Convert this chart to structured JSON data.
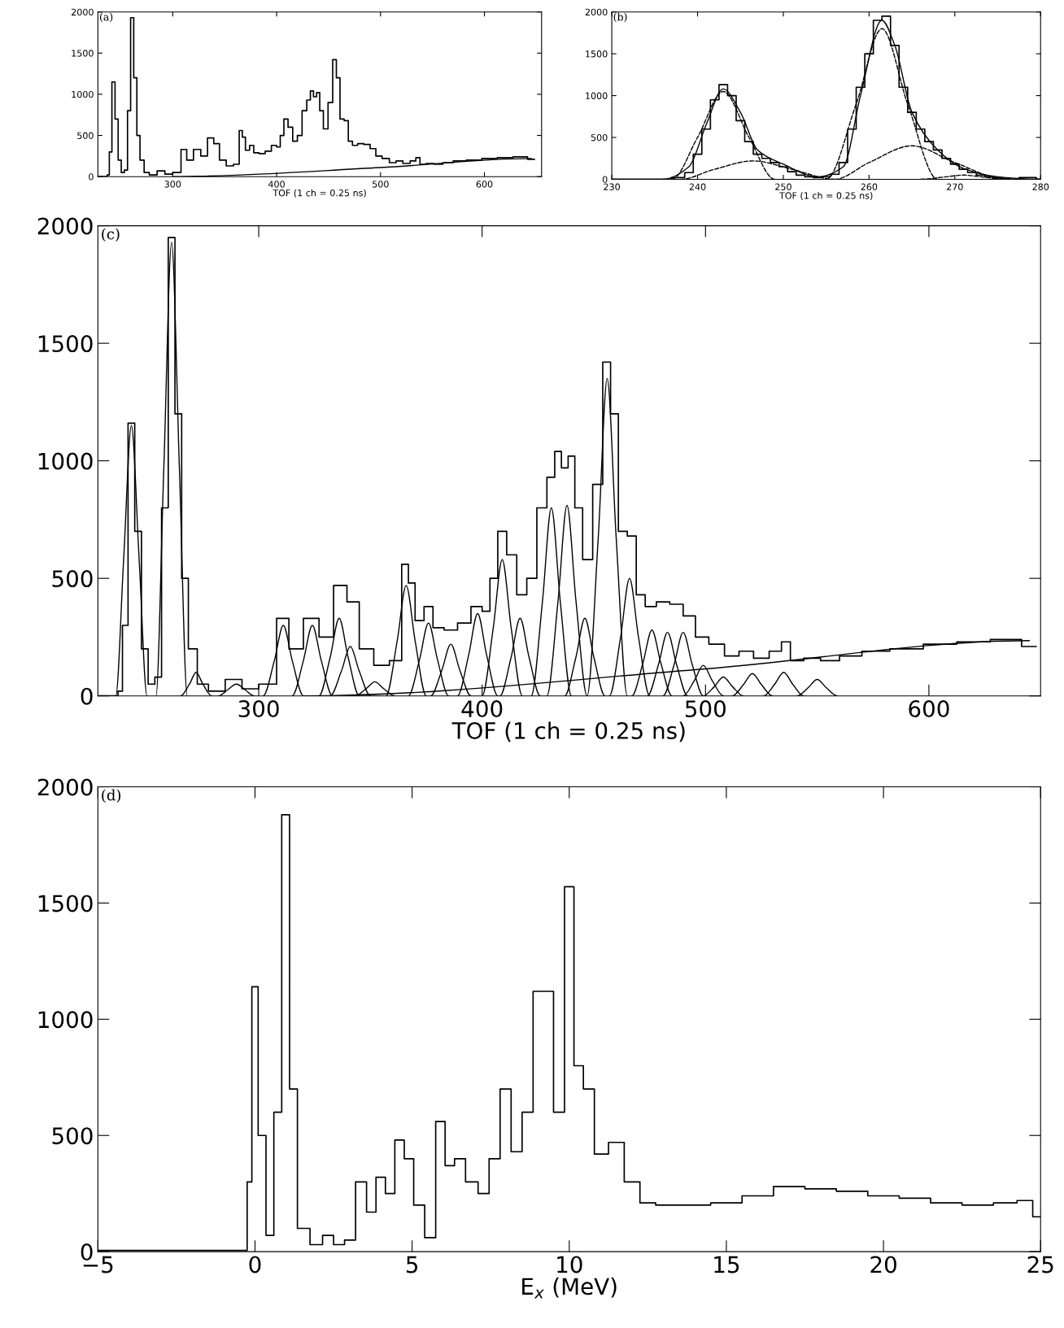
{
  "chart_data": [
    {
      "type": "step",
      "annotations": [
        "(a)"
      ],
      "xlabel": "TOF (1 ch = 0.25 ns)",
      "xlim": [
        228,
        655
      ],
      "xticks": [
        300,
        400,
        500,
        600
      ],
      "ylim": [
        0,
        2000
      ],
      "yticks": [
        0,
        500,
        1000,
        1500,
        2000
      ],
      "series": [
        {
          "color": "#000000",
          "x": [
            228,
            236,
            238,
            240,
            243,
            246,
            249,
            252,
            255,
            258,
            261,
            264,
            267,
            270,
            275,
            280,
            290,
            295,
            305,
            311,
            316,
            324,
            330,
            337,
            342,
            348,
            355,
            362,
            366,
            368,
            372,
            376,
            380,
            386,
            392,
            398,
            402,
            405,
            409,
            413,
            418,
            422,
            427,
            431,
            434,
            437,
            440,
            443,
            447,
            452,
            456,
            459,
            463,
            467,
            471,
            475,
            481,
            487,
            493,
            498,
            505,
            512,
            518,
            525,
            532,
            536,
            540,
            548,
            555,
            565,
            575,
            590,
            605,
            620,
            635,
            648
          ],
          "values": [
            0,
            0,
            20,
            300,
            1150,
            700,
            200,
            50,
            80,
            800,
            1930,
            1200,
            500,
            200,
            50,
            20,
            70,
            30,
            50,
            330,
            200,
            330,
            250,
            470,
            400,
            200,
            130,
            150,
            560,
            480,
            320,
            380,
            290,
            280,
            310,
            380,
            360,
            500,
            700,
            600,
            430,
            500,
            800,
            930,
            1040,
            970,
            1020,
            800,
            580,
            900,
            1420,
            1200,
            700,
            680,
            430,
            380,
            400,
            390,
            340,
            250,
            220,
            170,
            190,
            160,
            190,
            230,
            150,
            160,
            150,
            170,
            190,
            200,
            220,
            230,
            240,
            210
          ]
        },
        {
          "type": "line",
          "color": "#000000",
          "x": [
            300,
            500,
            645
          ],
          "values": [
            0,
            110,
            220
          ]
        }
      ]
    },
    {
      "type": "step",
      "annotations": [
        "(b)"
      ],
      "xlabel": "TOF (1 ch = 0.25 ns)",
      "xlim": [
        230,
        280
      ],
      "xticks": [
        230,
        240,
        250,
        260,
        270,
        280
      ],
      "ylim": [
        0,
        2000
      ],
      "yticks": [
        0,
        500,
        1000,
        1500,
        2000
      ],
      "series": [
        {
          "color": "#000000",
          "x": [
            230,
            232,
            234,
            236,
            238,
            239,
            240,
            241,
            242,
            243,
            244,
            245,
            246,
            247,
            248,
            249,
            250,
            251,
            252,
            253,
            254,
            255,
            256,
            257,
            258,
            259,
            260,
            261,
            262,
            263,
            264,
            265,
            266,
            267,
            268,
            269,
            270,
            271,
            272,
            273,
            274,
            275,
            276,
            277,
            278,
            279,
            280
          ],
          "values": [
            0,
            0,
            0,
            0,
            20,
            80,
            300,
            600,
            950,
            1130,
            1000,
            700,
            450,
            300,
            250,
            200,
            150,
            90,
            50,
            30,
            20,
            30,
            60,
            200,
            600,
            1100,
            1500,
            1900,
            1950,
            1600,
            1100,
            800,
            600,
            450,
            350,
            250,
            180,
            120,
            80,
            50,
            30,
            20,
            10,
            0,
            20,
            20,
            0
          ]
        },
        {
          "type": "line",
          "color": "#000000",
          "x": [
            236,
            239,
            241,
            243,
            245,
            247,
            250,
            254,
            257,
            259,
            261.5,
            263,
            265,
            268,
            271,
            275,
            280
          ],
          "values": [
            0,
            150,
            650,
            1080,
            800,
            350,
            180,
            30,
            150,
            1000,
            1900,
            1600,
            800,
            350,
            130,
            30,
            0
          ]
        },
        {
          "type": "line",
          "color": "#000000",
          "line_style": "dashed",
          "x": [
            237,
            240,
            243,
            246,
            249
          ],
          "values": [
            0,
            500,
            1050,
            500,
            0
          ]
        },
        {
          "type": "line",
          "color": "#000000",
          "line_style": "dashed",
          "x": [
            238,
            242,
            246.5,
            251,
            256
          ],
          "values": [
            0,
            120,
            220,
            120,
            0
          ]
        },
        {
          "type": "line",
          "color": "#000000",
          "line_style": "dashed",
          "x": [
            255,
            258.5,
            261.5,
            264.5,
            268
          ],
          "values": [
            0,
            900,
            1800,
            900,
            0
          ]
        },
        {
          "type": "line",
          "color": "#000000",
          "line_style": "dashed",
          "x": [
            256,
            260,
            265,
            270,
            276
          ],
          "values": [
            0,
            200,
            400,
            200,
            0
          ]
        },
        {
          "type": "line",
          "color": "#000000",
          "line_style": "dashed",
          "x": [
            266,
            269,
            271,
            273,
            276
          ],
          "values": [
            0,
            30,
            50,
            30,
            0
          ]
        }
      ]
    },
    {
      "type": "step",
      "annotations": [
        "(c)"
      ],
      "xlabel": "TOF (1 ch = 0.25 ns)",
      "xlim": [
        228,
        650
      ],
      "xticks": [
        300,
        400,
        500,
        600
      ],
      "ylim": [
        0,
        2000
      ],
      "yticks": [
        0,
        500,
        1000,
        1500,
        2000
      ],
      "series": [
        {
          "color": "#000000",
          "x": [
            228,
            236,
            238,
            240,
            243,
            246,
            249,
            252,
            255,
            258,
            261,
            264,
            267,
            270,
            275,
            280,
            290,
            295,
            305,
            311,
            316,
            324,
            330,
            337,
            342,
            348,
            355,
            362,
            366,
            368,
            372,
            376,
            380,
            386,
            392,
            398,
            402,
            405,
            409,
            413,
            418,
            422,
            427,
            431,
            434,
            437,
            440,
            443,
            447,
            452,
            456,
            459,
            463,
            467,
            471,
            475,
            481,
            487,
            493,
            498,
            505,
            512,
            518,
            525,
            532,
            536,
            540,
            548,
            555,
            565,
            575,
            590,
            605,
            620,
            635,
            648
          ],
          "values": [
            0,
            0,
            20,
            300,
            1160,
            700,
            200,
            50,
            80,
            800,
            1950,
            1200,
            500,
            200,
            50,
            20,
            70,
            30,
            50,
            330,
            200,
            330,
            250,
            470,
            400,
            200,
            130,
            150,
            560,
            480,
            320,
            380,
            290,
            280,
            310,
            380,
            360,
            500,
            700,
            600,
            430,
            500,
            800,
            930,
            1040,
            970,
            1020,
            800,
            580,
            900,
            1420,
            1200,
            700,
            680,
            430,
            380,
            400,
            390,
            340,
            250,
            220,
            170,
            190,
            160,
            190,
            230,
            150,
            160,
            150,
            170,
            190,
            200,
            220,
            230,
            240,
            210
          ]
        },
        {
          "type": "line",
          "color": "#000000",
          "x": [
            320,
            500,
            645
          ],
          "values": [
            0,
            115,
            235
          ]
        },
        {
          "type": "line",
          "color": "#000000",
          "x": [
            236,
            239.5,
            243,
            246.5,
            250
          ],
          "values": [
            0,
            575,
            1150,
            575,
            0
          ]
        },
        {
          "type": "line",
          "color": "#000000",
          "x": [
            254,
            257.5,
            261,
            264.5,
            268
          ],
          "values": [
            0,
            965,
            1930,
            965,
            0
          ]
        },
        {
          "type": "line",
          "color": "#000000",
          "x": [
            265,
            269,
            272,
            275,
            279
          ],
          "values": [
            0,
            50,
            100,
            50,
            0
          ]
        },
        {
          "type": "line",
          "color": "#000000",
          "x": [
            282,
            286,
            290,
            294,
            298
          ],
          "values": [
            0,
            25,
            50,
            25,
            0
          ]
        },
        {
          "type": "line",
          "color": "#000000",
          "x": [
            302,
            307,
            311,
            315,
            320
          ],
          "values": [
            0,
            150,
            300,
            150,
            0
          ]
        },
        {
          "type": "line",
          "color": "#000000",
          "x": [
            315,
            320,
            324,
            328,
            333
          ],
          "values": [
            0,
            150,
            300,
            150,
            0
          ]
        },
        {
          "type": "line",
          "color": "#000000",
          "x": [
            327,
            332,
            336,
            340,
            345
          ],
          "values": [
            0,
            165,
            330,
            165,
            0
          ]
        },
        {
          "type": "line",
          "color": "#000000",
          "x": [
            332,
            337,
            341,
            345,
            350
          ],
          "values": [
            0,
            105,
            210,
            105,
            0
          ]
        },
        {
          "type": "line",
          "color": "#000000",
          "x": [
            343,
            348,
            352,
            356,
            361
          ],
          "values": [
            0,
            30,
            60,
            30,
            0
          ]
        },
        {
          "type": "line",
          "color": "#000000",
          "x": [
            357,
            362,
            366,
            370,
            375
          ],
          "values": [
            0,
            235,
            470,
            235,
            0
          ]
        },
        {
          "type": "line",
          "color": "#000000",
          "x": [
            367,
            372,
            376,
            380,
            385
          ],
          "values": [
            0,
            155,
            310,
            155,
            0
          ]
        },
        {
          "type": "line",
          "color": "#000000",
          "x": [
            377,
            382,
            386,
            390,
            395
          ],
          "values": [
            0,
            110,
            220,
            110,
            0
          ]
        },
        {
          "type": "line",
          "color": "#000000",
          "x": [
            389,
            394,
            398,
            402,
            407
          ],
          "values": [
            0,
            175,
            350,
            175,
            0
          ]
        },
        {
          "type": "line",
          "color": "#000000",
          "x": [
            400,
            405,
            409,
            413,
            418
          ],
          "values": [
            0,
            290,
            580,
            290,
            0
          ]
        },
        {
          "type": "line",
          "color": "#000000",
          "x": [
            408,
            413,
            417,
            421,
            426
          ],
          "values": [
            0,
            165,
            330,
            165,
            0
          ]
        },
        {
          "type": "line",
          "color": "#000000",
          "x": [
            422,
            427,
            431,
            435,
            440
          ],
          "values": [
            0,
            400,
            800,
            400,
            0
          ]
        },
        {
          "type": "line",
          "color": "#000000",
          "x": [
            429,
            434,
            438,
            442,
            447
          ],
          "values": [
            0,
            405,
            810,
            405,
            0
          ]
        },
        {
          "type": "line",
          "color": "#000000",
          "x": [
            437,
            442,
            446,
            450,
            455
          ],
          "values": [
            0,
            165,
            330,
            165,
            0
          ]
        },
        {
          "type": "line",
          "color": "#000000",
          "x": [
            447,
            452,
            456,
            460,
            465
          ],
          "values": [
            0,
            675,
            1350,
            675,
            0
          ]
        },
        {
          "type": "line",
          "color": "#000000",
          "x": [
            457,
            462,
            466,
            470,
            475
          ],
          "values": [
            0,
            250,
            500,
            250,
            0
          ]
        },
        {
          "type": "line",
          "color": "#000000",
          "x": [
            467,
            472,
            476,
            480,
            485
          ],
          "values": [
            0,
            140,
            280,
            140,
            0
          ]
        },
        {
          "type": "line",
          "color": "#000000",
          "x": [
            474,
            479,
            483,
            487,
            492
          ],
          "values": [
            0,
            135,
            270,
            135,
            0
          ]
        },
        {
          "type": "line",
          "color": "#000000",
          "x": [
            481,
            486,
            490,
            494,
            499
          ],
          "values": [
            0,
            135,
            270,
            135,
            0
          ]
        },
        {
          "type": "line",
          "color": "#000000",
          "x": [
            490,
            495,
            499,
            503,
            508
          ],
          "values": [
            0,
            65,
            130,
            65,
            0
          ]
        },
        {
          "type": "line",
          "color": "#000000",
          "x": [
            499,
            504,
            508,
            512,
            517
          ],
          "values": [
            0,
            40,
            80,
            40,
            0
          ]
        },
        {
          "type": "line",
          "color": "#000000",
          "x": [
            512,
            517,
            521,
            525,
            530
          ],
          "values": [
            0,
            48,
            95,
            48,
            0
          ]
        },
        {
          "type": "line",
          "color": "#000000",
          "x": [
            526,
            531,
            535,
            539,
            544
          ],
          "values": [
            0,
            50,
            100,
            50,
            0
          ]
        },
        {
          "type": "line",
          "color": "#000000",
          "x": [
            541,
            546,
            550,
            554,
            559
          ],
          "values": [
            0,
            35,
            70,
            35,
            0
          ]
        }
      ]
    },
    {
      "type": "step",
      "annotations": [
        "(d)"
      ],
      "xlabel": "E$_{x}$ (MeV)",
      "xlim": [
        -5,
        25
      ],
      "xticks": [
        {
          "value": -5,
          "label": "−5"
        },
        0,
        5,
        10,
        15,
        20,
        25
      ],
      "ylim": [
        0,
        2000
      ],
      "yticks": [
        0,
        500,
        1000,
        1500,
        2000
      ],
      "series": [
        {
          "color": "#000000",
          "x": [
            -5,
            -4,
            -3,
            -2,
            -1,
            -0.3,
            -0.2,
            0,
            0.2,
            0.5,
            0.7,
            1.0,
            1.2,
            1.5,
            2.0,
            2.3,
            2.7,
            3.0,
            3.4,
            3.7,
            4.0,
            4.3,
            4.6,
            4.9,
            5.2,
            5.6,
            5.9,
            6.2,
            6.5,
            6.9,
            7.3,
            7.6,
            8.0,
            8.3,
            8.7,
            9.0,
            9.3,
            9.7,
            10.0,
            10.3,
            10.6,
            11.0,
            11.5,
            12.0,
            12.5,
            13,
            14,
            15,
            16,
            17,
            18,
            19,
            20,
            21,
            22,
            23,
            24,
            24.5,
            25
          ],
          "values": [
            5,
            5,
            5,
            5,
            5,
            5,
            300,
            1140,
            500,
            70,
            600,
            1880,
            700,
            100,
            30,
            70,
            30,
            50,
            300,
            170,
            320,
            250,
            480,
            400,
            200,
            60,
            560,
            370,
            400,
            300,
            250,
            400,
            700,
            430,
            600,
            1120,
            1120,
            600,
            1570,
            800,
            700,
            420,
            470,
            300,
            210,
            200,
            200,
            210,
            240,
            280,
            270,
            260,
            240,
            230,
            210,
            200,
            210,
            220,
            150
          ]
        }
      ]
    }
  ]
}
